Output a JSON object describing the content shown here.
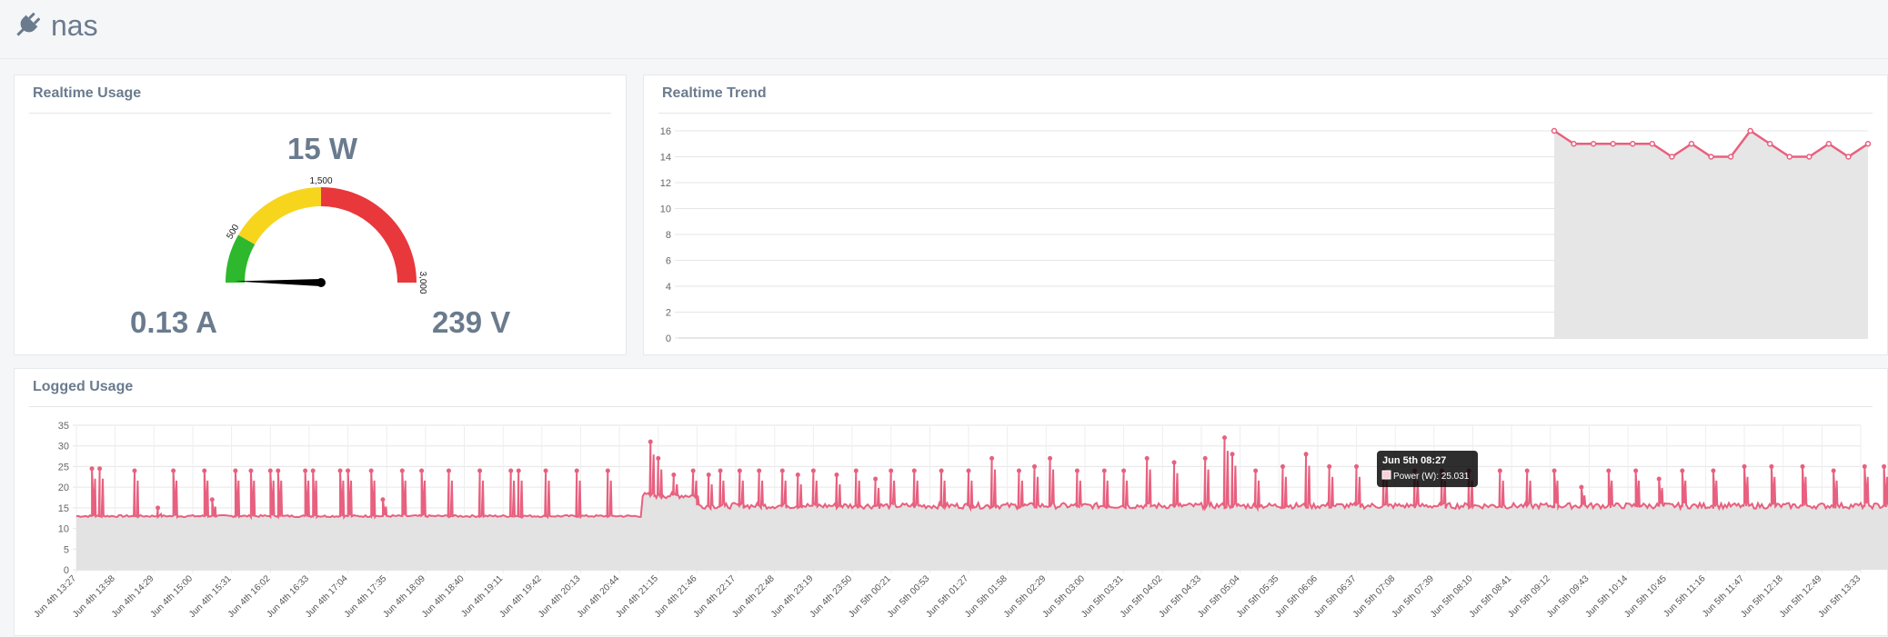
{
  "app": {
    "title": "nas",
    "icon": "plug-icon"
  },
  "realtime_usage": {
    "title": "Realtime Usage",
    "power": "15 W",
    "current": "0.13 A",
    "voltage": "239 V",
    "gauge": {
      "min": 0,
      "max": 3000,
      "value": 15,
      "ticks": [
        "500",
        "1,500",
        "3,000"
      ],
      "bands": [
        {
          "from": 0,
          "to": 500,
          "color": "#2db82d"
        },
        {
          "from": 500,
          "to": 1500,
          "color": "#f7d51d"
        },
        {
          "from": 1500,
          "to": 3000,
          "color": "#e8383c"
        }
      ]
    }
  },
  "realtime_trend": {
    "title": "Realtime Trend",
    "chart_data": {
      "type": "area",
      "ylim": [
        0,
        16
      ],
      "yticks": [
        "0",
        "2",
        "4",
        "6",
        "8",
        "10",
        "12",
        "14",
        "16"
      ],
      "series": [
        {
          "values": [
            16,
            15,
            15,
            15,
            15,
            15,
            14,
            15,
            14,
            14,
            16,
            15,
            14,
            14,
            15,
            14,
            15
          ]
        }
      ],
      "color": "#e8607f"
    }
  },
  "logged_usage": {
    "title": "Logged Usage",
    "tooltip": {
      "title": "Jun 5th 08:27",
      "label": "Power (W): 25.031"
    },
    "chart_data": {
      "type": "area",
      "ylim": [
        0,
        35
      ],
      "yticks": [
        "0",
        "5",
        "10",
        "15",
        "20",
        "25",
        "30",
        "35"
      ],
      "xticks": [
        "Jun 4th 13:27",
        "Jun 4th 13:58",
        "Jun 4th 14:29",
        "Jun 4th 15:00",
        "Jun 4th 15:31",
        "Jun 4th 16:02",
        "Jun 4th 16:33",
        "Jun 4th 17:04",
        "Jun 4th 17:35",
        "Jun 4th 18:09",
        "Jun 4th 18:40",
        "Jun 4th 19:11",
        "Jun 4th 19:42",
        "Jun 4th 20:13",
        "Jun 4th 20:44",
        "Jun 4th 21:15",
        "Jun 4th 21:46",
        "Jun 4th 22:17",
        "Jun 4th 22:48",
        "Jun 4th 23:19",
        "Jun 4th 23:50",
        "Jun 5th 00:21",
        "Jun 5th 00:53",
        "Jun 5th 01:27",
        "Jun 5th 01:58",
        "Jun 5th 02:29",
        "Jun 5th 03:00",
        "Jun 5th 03:31",
        "Jun 5th 04:02",
        "Jun 5th 04:33",
        "Jun 5th 05:04",
        "Jun 5th 05:35",
        "Jun 5th 06:06",
        "Jun 5th 06:37",
        "Jun 5th 07:08",
        "Jun 5th 07:39",
        "Jun 5th 08:10",
        "Jun 5th 08:41",
        "Jun 5th 09:12",
        "Jun 5th 09:43",
        "Jun 5th 10:14",
        "Jun 5th 10:45",
        "Jun 5th 11:16",
        "Jun 5th 11:47",
        "Jun 5th 12:18",
        "Jun 5th 12:49",
        "Jun 5th 13:33"
      ],
      "baseline_segments": [
        {
          "from_tick": 0,
          "to_tick": 14.6,
          "level": 13
        },
        {
          "from_tick": 14.6,
          "to_tick": 16,
          "level": 18
        },
        {
          "from_tick": 16,
          "to_tick": 46.8,
          "level": 15.5
        }
      ],
      "spikes": [
        [
          0.4,
          24.5
        ],
        [
          0.6,
          24.5
        ],
        [
          1.5,
          24
        ],
        [
          2.1,
          15
        ],
        [
          2.5,
          24
        ],
        [
          3.3,
          24
        ],
        [
          3.5,
          17
        ],
        [
          4.1,
          24
        ],
        [
          4.5,
          24
        ],
        [
          5.0,
          24
        ],
        [
          5.2,
          24
        ],
        [
          5.9,
          24
        ],
        [
          6.1,
          24
        ],
        [
          6.8,
          24
        ],
        [
          7.0,
          24
        ],
        [
          7.6,
          24
        ],
        [
          7.9,
          17
        ],
        [
          8.4,
          24
        ],
        [
          8.9,
          24
        ],
        [
          9.6,
          24
        ],
        [
          10.4,
          24
        ],
        [
          11.2,
          24
        ],
        [
          11.4,
          24
        ],
        [
          12.1,
          24
        ],
        [
          12.9,
          24
        ],
        [
          13.7,
          24
        ],
        [
          14.8,
          31
        ],
        [
          15.0,
          27
        ],
        [
          15.4,
          23
        ],
        [
          15.9,
          24
        ],
        [
          16.3,
          23
        ],
        [
          16.6,
          24
        ],
        [
          17.1,
          24
        ],
        [
          17.6,
          24
        ],
        [
          18.2,
          24
        ],
        [
          18.6,
          23
        ],
        [
          19.0,
          24
        ],
        [
          19.6,
          23
        ],
        [
          20.1,
          24
        ],
        [
          20.6,
          22
        ],
        [
          21.0,
          24
        ],
        [
          21.6,
          24
        ],
        [
          22.3,
          24
        ],
        [
          23.0,
          24
        ],
        [
          23.6,
          27
        ],
        [
          24.3,
          24
        ],
        [
          24.7,
          25
        ],
        [
          25.1,
          27
        ],
        [
          25.8,
          24
        ],
        [
          26.5,
          24
        ],
        [
          27.0,
          24
        ],
        [
          27.6,
          27
        ],
        [
          28.3,
          26
        ],
        [
          29.1,
          27
        ],
        [
          29.6,
          32
        ],
        [
          29.8,
          28
        ],
        [
          30.4,
          24
        ],
        [
          31.1,
          25
        ],
        [
          31.7,
          28
        ],
        [
          32.3,
          25
        ],
        [
          33.0,
          25
        ],
        [
          33.7,
          24
        ],
        [
          34.5,
          24
        ],
        [
          35.2,
          24
        ],
        [
          35.9,
          24
        ],
        [
          36.7,
          24
        ],
        [
          37.4,
          24
        ],
        [
          38.1,
          24
        ],
        [
          38.8,
          20
        ],
        [
          39.5,
          24
        ],
        [
          40.2,
          24
        ],
        [
          40.8,
          22
        ],
        [
          41.4,
          24
        ],
        [
          42.2,
          24
        ],
        [
          43.0,
          25
        ],
        [
          43.7,
          25
        ],
        [
          44.5,
          25
        ],
        [
          45.3,
          24
        ],
        [
          46.1,
          25
        ],
        [
          46.6,
          25
        ]
      ],
      "color": "#e8607f"
    }
  }
}
